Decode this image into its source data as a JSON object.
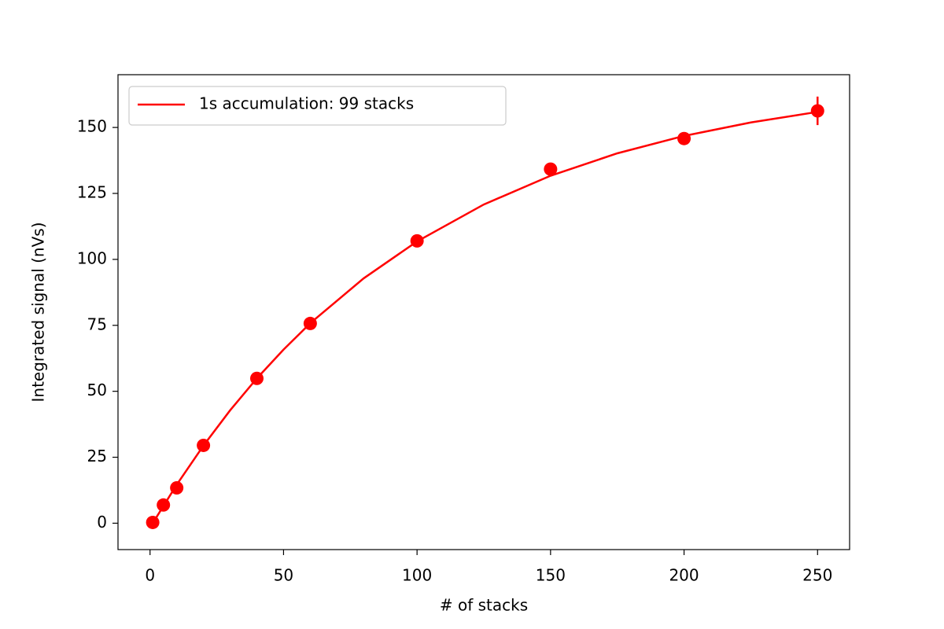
{
  "chart_data": {
    "type": "line",
    "xlabel": "# of stacks",
    "ylabel": "Integrated signal (nVs)",
    "xlim": [
      -12,
      262
    ],
    "ylim": [
      -10,
      170
    ],
    "xticks": [
      0,
      50,
      100,
      150,
      200,
      250
    ],
    "yticks": [
      0,
      25,
      50,
      75,
      100,
      125,
      150
    ],
    "legend": "upper left",
    "series": [
      {
        "name": "1s accumulation: 99 stacks",
        "color": "#ff0000",
        "x": [
          1,
          10,
          20,
          30,
          40,
          50,
          60,
          80,
          100,
          125,
          150,
          175,
          200,
          225,
          250
        ],
        "values": [
          0,
          14.6,
          29.4,
          42.8,
          54.9,
          65.8,
          75.8,
          92.8,
          106.8,
          120.8,
          131.7,
          140.2,
          146.8,
          151.9,
          155.9
        ]
      }
    ],
    "points": {
      "color": "#ff0000",
      "x": [
        1,
        5,
        10,
        20,
        40,
        60,
        100,
        150,
        200,
        250
      ],
      "values": [
        0.3,
        6.9,
        13.4,
        29.5,
        54.9,
        75.7,
        107,
        134.2,
        145.8,
        156.3
      ],
      "errors": [
        0.5,
        0.5,
        0.5,
        0.8,
        1,
        1,
        1.2,
        1.5,
        2,
        5.4
      ]
    }
  }
}
